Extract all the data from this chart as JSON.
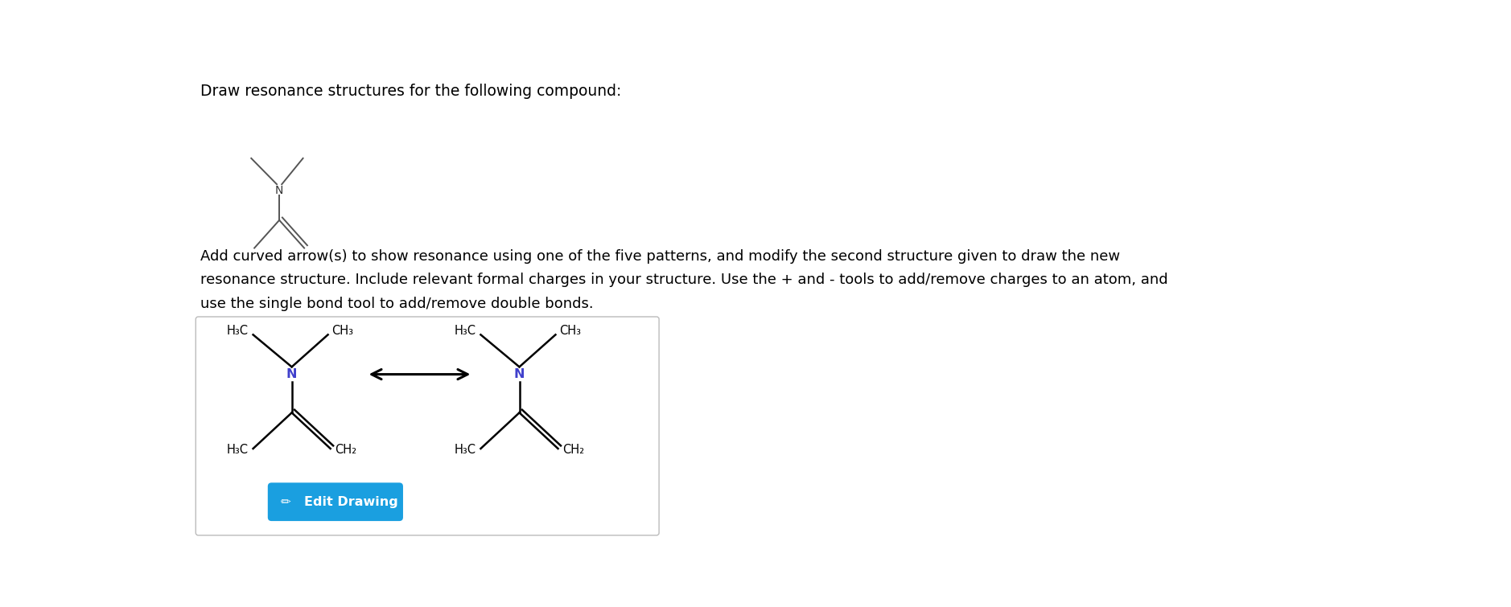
{
  "title_text": "Draw resonance structures for the following compound:",
  "description_line1": "Add curved arrow(s) to show resonance using one of the five patterns, and modify the second structure given to draw the new",
  "description_line2": "resonance structure. Include relevant formal charges in your structure. Use the + and - tools to add/remove charges to an atom, and",
  "description_line3": "use the single bond tool to add/remove double bonds.",
  "background_color": "#ffffff",
  "title_fontsize": 13.5,
  "desc_fontsize": 13.0,
  "molecule_color": "#000000",
  "N_color": "#4040cc",
  "small_mol_color": "#555555",
  "box_bg": "#ffffff",
  "box_edge": "#bbbbbb",
  "button_color": "#1a9fe0",
  "button_text": "Edit Drawing",
  "button_text_color": "#ffffff"
}
